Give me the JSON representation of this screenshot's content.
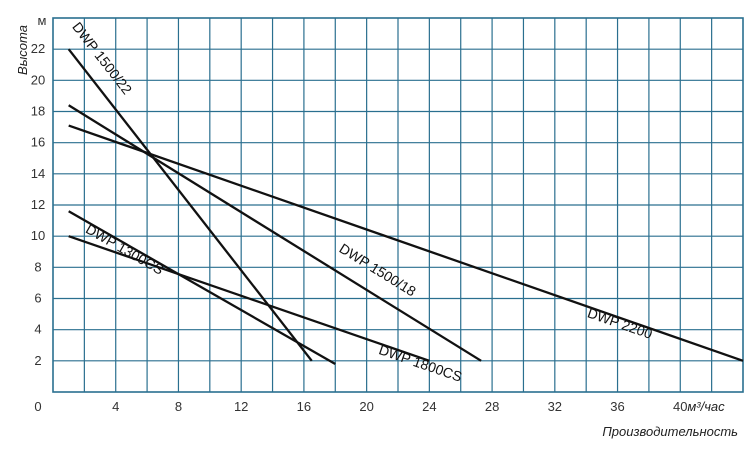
{
  "chart_data": {
    "type": "line",
    "title": "",
    "xlabel": "Производительность",
    "ylabel": "Высота",
    "x_unit": "м³/час",
    "y_unit": "м",
    "origin_label": "0",
    "xlim": [
      0,
      44
    ],
    "ylim": [
      0,
      24
    ],
    "x_ticks": [
      4,
      8,
      12,
      16,
      20,
      24,
      28,
      32,
      36,
      40
    ],
    "y_ticks": [
      2,
      4,
      6,
      8,
      10,
      12,
      14,
      16,
      18,
      20,
      22
    ],
    "grid": true,
    "grid_x_step": 2,
    "grid_y_step": 2,
    "colors": {
      "grid": "#2a6f8f",
      "line": "#111111",
      "text": "#333333"
    },
    "series": [
      {
        "name": "DWP 1500/22",
        "x": [
          1,
          16.5
        ],
        "y": [
          22,
          2
        ]
      },
      {
        "name": "DWP 1500/18",
        "x": [
          1,
          27.3
        ],
        "y": [
          18.4,
          2
        ]
      },
      {
        "name": "DWP 2200",
        "x": [
          1,
          44
        ],
        "y": [
          17.1,
          2
        ]
      },
      {
        "name": "DWP 1300CS",
        "x": [
          1,
          18
        ],
        "y": [
          11.6,
          1.8
        ]
      },
      {
        "name": "DWP 1800CS",
        "x": [
          1,
          24
        ],
        "y": [
          10,
          2
        ]
      }
    ]
  }
}
